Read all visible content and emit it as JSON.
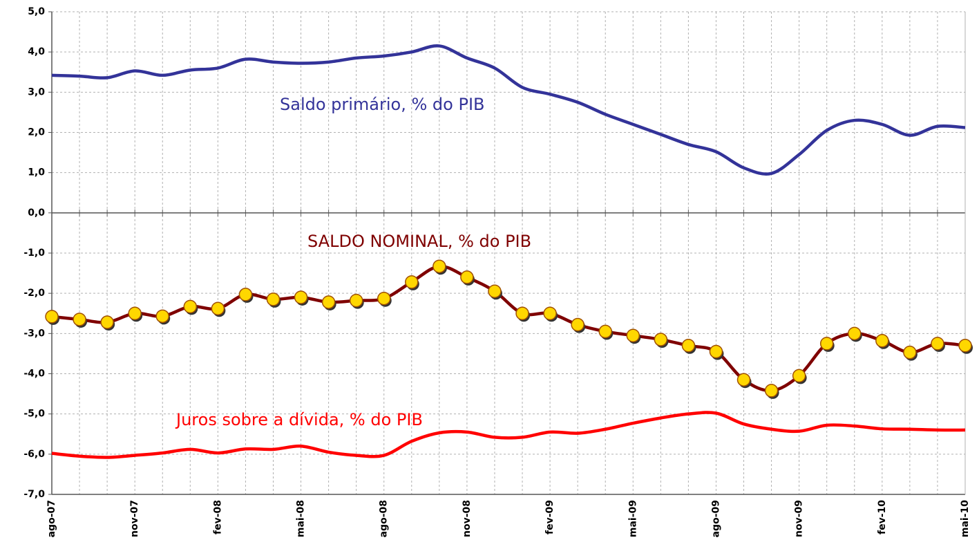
{
  "chart_data": {
    "type": "line",
    "categories": [
      "ago-07",
      null,
      null,
      "nov-07",
      null,
      null,
      "fev-08",
      null,
      null,
      "mai-08",
      null,
      null,
      "ago-08",
      null,
      null,
      "nov-08",
      null,
      null,
      "fev-09",
      null,
      null,
      "mai-09",
      null,
      null,
      "ago-09",
      null,
      null,
      "nov-09",
      null,
      null,
      "fev-10",
      null,
      null,
      "mai-10"
    ],
    "series": [
      {
        "name": "Saldo primário, % do PIB",
        "color": "#333399",
        "values": [
          3.42,
          3.4,
          3.36,
          3.53,
          3.42,
          3.55,
          3.6,
          3.82,
          3.75,
          3.72,
          3.75,
          3.85,
          3.9,
          4.0,
          4.15,
          3.85,
          3.6,
          3.12,
          2.95,
          2.75,
          2.45,
          2.2,
          1.95,
          1.7,
          1.52,
          1.12,
          0.98,
          1.45,
          2.05,
          2.3,
          2.2,
          1.93,
          2.15,
          2.12
        ]
      },
      {
        "name": "SALDO NOMINAL, % do PIB",
        "color": "#7f0000",
        "marker_color": "#ffd700",
        "values": [
          -2.58,
          -2.65,
          -2.72,
          -2.5,
          -2.57,
          -2.33,
          -2.38,
          -2.03,
          -2.15,
          -2.1,
          -2.22,
          -2.18,
          -2.13,
          -1.72,
          -1.33,
          -1.6,
          -1.95,
          -2.5,
          -2.5,
          -2.78,
          -2.95,
          -3.05,
          -3.15,
          -3.3,
          -3.45,
          -4.15,
          -4.42,
          -4.05,
          -3.25,
          -3.0,
          -3.18,
          -3.47,
          -3.25,
          -3.3
        ]
      },
      {
        "name": "Juros sobre a dívida, % do PIB",
        "color": "#ff0000",
        "values": [
          -5.98,
          -6.05,
          -6.08,
          -6.03,
          -5.97,
          -5.88,
          -5.97,
          -5.87,
          -5.88,
          -5.8,
          -5.95,
          -6.03,
          -6.03,
          -5.68,
          -5.47,
          -5.45,
          -5.58,
          -5.58,
          -5.45,
          -5.48,
          -5.38,
          -5.23,
          -5.1,
          -5.0,
          -4.98,
          -5.25,
          -5.38,
          -5.43,
          -5.28,
          -5.3,
          -5.37,
          -5.38,
          -5.4,
          -5.4
        ]
      }
    ],
    "ylim": [
      -7,
      5
    ],
    "yticks": [
      {
        "value": 5,
        "label": "5,0"
      },
      {
        "value": 4,
        "label": "4,0"
      },
      {
        "value": 3,
        "label": "3,0"
      },
      {
        "value": 2,
        "label": "2,0"
      },
      {
        "value": 1,
        "label": "1,0"
      },
      {
        "value": 0,
        "label": "0,0"
      },
      {
        "value": -1,
        "label": "-1,0"
      },
      {
        "value": -2,
        "label": "-2,0"
      },
      {
        "value": -3,
        "label": "-3,0"
      },
      {
        "value": -4,
        "label": "-4,0"
      },
      {
        "value": -5,
        "label": "-5,0"
      },
      {
        "value": -6,
        "label": "-6,0"
      },
      {
        "value": -7,
        "label": "-7,0"
      }
    ],
    "grid": true
  }
}
